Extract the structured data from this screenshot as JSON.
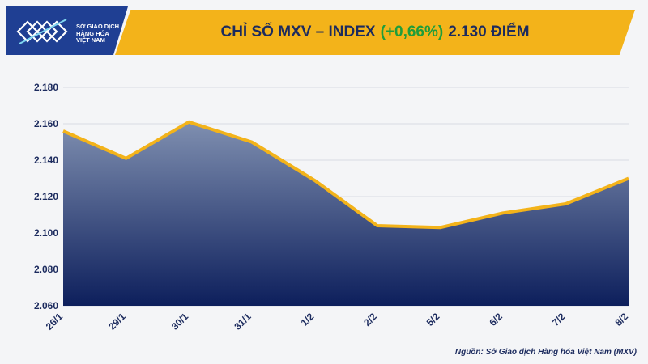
{
  "header": {
    "logo_lines": [
      "SỞ GIAO DỊCH",
      "HÀNG HÓA",
      "VIỆT NAM"
    ],
    "title_main": "CHỈ SỐ MXV – INDEX",
    "title_change": "(+0,66%)",
    "title_value": "2.130 ĐIỂM"
  },
  "source": "Nguồn: Sở Giao dịch Hàng hóa Việt Nam (MXV)",
  "colors": {
    "line": "#f3b31a",
    "area_top": "#7f8fb0",
    "area_bottom": "#0d1f5c",
    "title_bg": "#f3b31a",
    "logo_bg": "#1f3f93"
  },
  "chart_data": {
    "type": "area",
    "title": "CHỈ SỐ MXV – INDEX (+0,66%) 2.130 ĐIỂM",
    "categories": [
      "26/1",
      "29/1",
      "30/1",
      "31/1",
      "1/2",
      "2/2",
      "5/2",
      "6/2",
      "7/2",
      "8/2"
    ],
    "values": [
      2156,
      2141,
      2161,
      2150,
      2129,
      2104,
      2103,
      2111,
      2116,
      2130
    ],
    "ylim": [
      2060,
      2180
    ],
    "yticks": [
      2060,
      2080,
      2100,
      2120,
      2140,
      2160,
      2180
    ],
    "ytick_labels": [
      "2.060",
      "2.080",
      "2.100",
      "2.120",
      "2.140",
      "2.160",
      "2.180"
    ],
    "grid": true,
    "xlabel": "",
    "ylabel": ""
  }
}
